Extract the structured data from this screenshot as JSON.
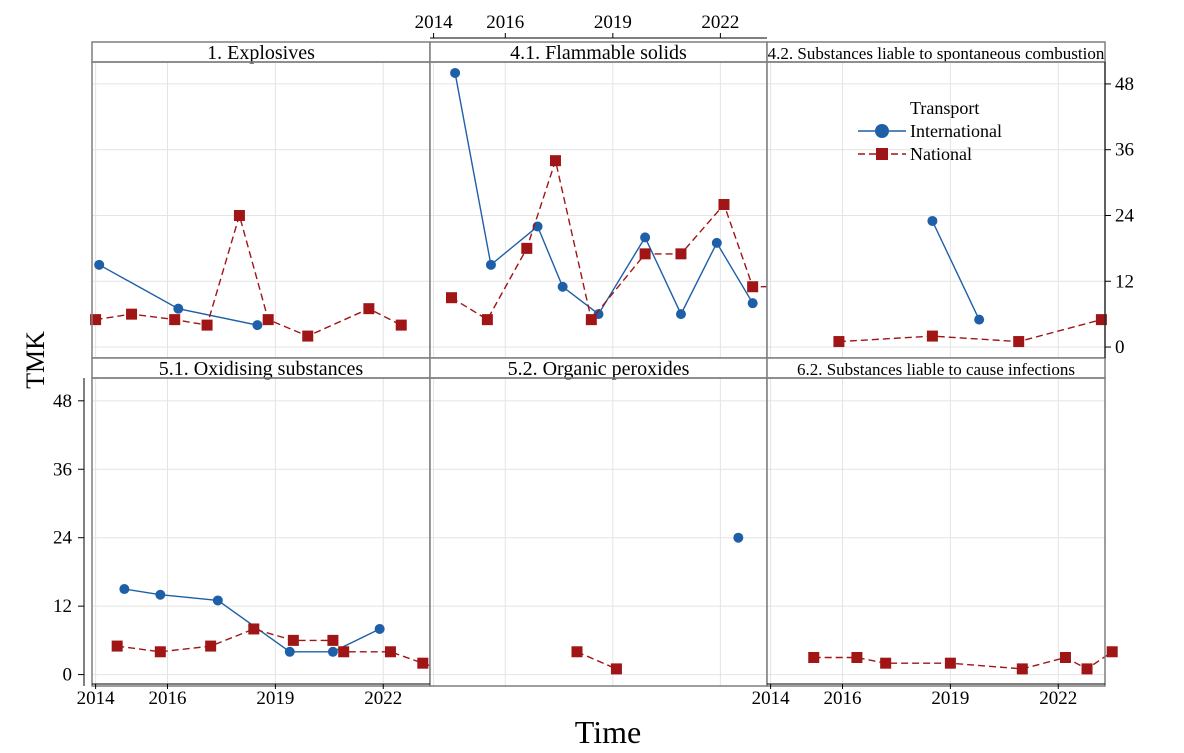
{
  "chart_data": {
    "type": "line",
    "layout": "faceted 2x3 small multiples",
    "xlabel": "Time",
    "ylabel": "TMK",
    "x_ticks": [
      2014,
      2016,
      2019,
      2022
    ],
    "y_ticks": [
      0,
      12,
      24,
      36,
      48
    ],
    "xlim": [
      2013.9,
      2023.3
    ],
    "ylim": [
      -2,
      52
    ],
    "grid": true,
    "legend": {
      "title": "Transport",
      "position": "top-right",
      "entries": [
        {
          "name": "International",
          "color": "#1f5fa8",
          "marker": "circle",
          "line": "solid"
        },
        {
          "name": "National",
          "color": "#a01515",
          "marker": "square",
          "line": "dashed"
        }
      ]
    },
    "panels": [
      {
        "title": "1. Explosives",
        "series": [
          {
            "name": "International",
            "x": [
              2014.1,
              2016.3,
              2018.5
            ],
            "y": [
              15,
              7,
              4
            ]
          },
          {
            "name": "National",
            "x": [
              2014.0,
              2015.0,
              2016.2,
              2017.1,
              2018.0,
              2018.8,
              2019.9,
              2021.6,
              2022.5
            ],
            "y": [
              5,
              6,
              5,
              4,
              24,
              5,
              2,
              7,
              4
            ]
          }
        ]
      },
      {
        "title": "4.1. Flammable solids",
        "series": [
          {
            "name": "International",
            "x": [
              2014.6,
              2015.6,
              2016.9,
              2017.6,
              2018.6,
              2019.9,
              2020.9,
              2021.9,
              2022.9
            ],
            "y": [
              50,
              15,
              22,
              11,
              6,
              20,
              6,
              19,
              8
            ]
          },
          {
            "name": "National",
            "x": [
              2014.5,
              2015.5,
              2016.6,
              2017.4,
              2018.4,
              2019.9,
              2020.9,
              2022.1,
              2022.9,
              2023.5
            ],
            "y": [
              9,
              5,
              18,
              34,
              5,
              17,
              17,
              26,
              11,
              11
            ]
          }
        ]
      },
      {
        "title": "4.2. Substances liable to spontaneous combustion",
        "series": [
          {
            "name": "International",
            "x": [
              2018.5,
              2019.8
            ],
            "y": [
              23,
              5
            ]
          },
          {
            "name": "National",
            "x": [
              2015.9,
              2018.5,
              2020.9,
              2023.2
            ],
            "y": [
              1,
              2,
              1,
              5
            ]
          }
        ]
      },
      {
        "title": "5.1. Oxidising substances",
        "series": [
          {
            "name": "International",
            "x": [
              2014.8,
              2015.8,
              2017.4,
              2019.4,
              2020.6,
              2021.9
            ],
            "y": [
              15,
              14,
              13,
              4,
              4,
              8
            ]
          },
          {
            "name": "National",
            "x": [
              2014.6,
              2015.8,
              2017.2,
              2018.4,
              2019.5,
              2020.6,
              2020.9,
              2022.2,
              2023.1,
              2023.6
            ],
            "y": [
              5,
              4,
              5,
              8,
              6,
              6,
              4,
              4,
              2,
              1
            ]
          }
        ]
      },
      {
        "title": "5.2. Organic peroxides",
        "series": [
          {
            "name": "International",
            "x": [
              2022.5
            ],
            "y": [
              24
            ]
          },
          {
            "name": "National",
            "x": [
              2018.0,
              2019.1
            ],
            "y": [
              4,
              1
            ]
          }
        ]
      },
      {
        "title": "6.2. Substances liable to cause infections",
        "series": [
          {
            "name": "International",
            "x": [],
            "y": []
          },
          {
            "name": "National",
            "x": [
              2015.2,
              2016.4,
              2017.2,
              2019.0,
              2021.0,
              2022.2,
              2022.8,
              2023.5
            ],
            "y": [
              3,
              3,
              2,
              2,
              1,
              3,
              1,
              4
            ]
          }
        ]
      }
    ]
  }
}
